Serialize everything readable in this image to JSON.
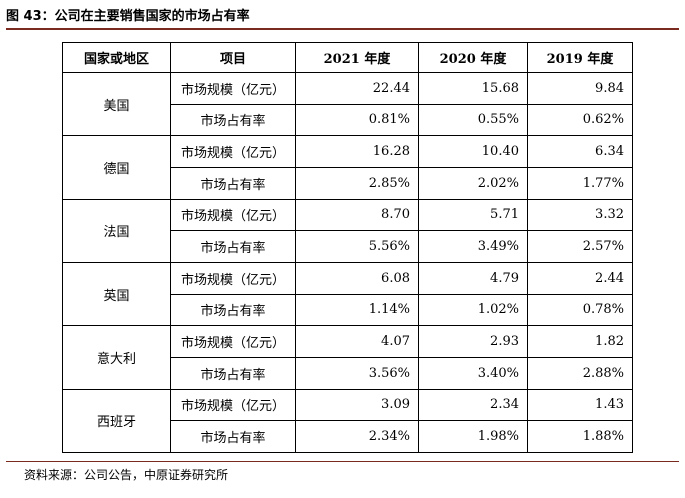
{
  "header": {
    "title": "图 43：公司在主要销售国家的市场占有率"
  },
  "table": {
    "columns": [
      "国家或地区",
      "项目",
      "2021 年度",
      "2020 年度",
      "2019 年度"
    ],
    "groups": [
      {
        "country": "美国",
        "rows": [
          [
            "市场规模（亿元）",
            "22.44",
            "15.68",
            "9.84"
          ],
          [
            "市场占有率",
            "0.81%",
            "0.55%",
            "0.62%"
          ]
        ]
      },
      {
        "country": "德国",
        "rows": [
          [
            "市场规模（亿元）",
            "16.28",
            "10.40",
            "6.34"
          ],
          [
            "市场占有率",
            "2.85%",
            "2.02%",
            "1.77%"
          ]
        ]
      },
      {
        "country": "法国",
        "rows": [
          [
            "市场规模（亿元）",
            "8.70",
            "5.71",
            "3.32"
          ],
          [
            "市场占有率",
            "5.56%",
            "3.49%",
            "2.57%"
          ]
        ]
      },
      {
        "country": "英国",
        "rows": [
          [
            "市场规模（亿元）",
            "6.08",
            "4.79",
            "2.44"
          ],
          [
            "市场占有率",
            "1.14%",
            "1.02%",
            "0.78%"
          ]
        ]
      },
      {
        "country": "意大利",
        "rows": [
          [
            "市场规模（亿元）",
            "4.07",
            "2.93",
            "1.82"
          ],
          [
            "市场占有率",
            "3.56%",
            "3.40%",
            "2.88%"
          ]
        ]
      },
      {
        "country": "西班牙",
        "rows": [
          [
            "市场规模（亿元）",
            "3.09",
            "2.34",
            "1.43"
          ],
          [
            "市场占有率",
            "2.34%",
            "1.98%",
            "1.88%"
          ]
        ]
      }
    ]
  },
  "footer": {
    "source": "资料来源：公司公告，中原证券研究所"
  }
}
